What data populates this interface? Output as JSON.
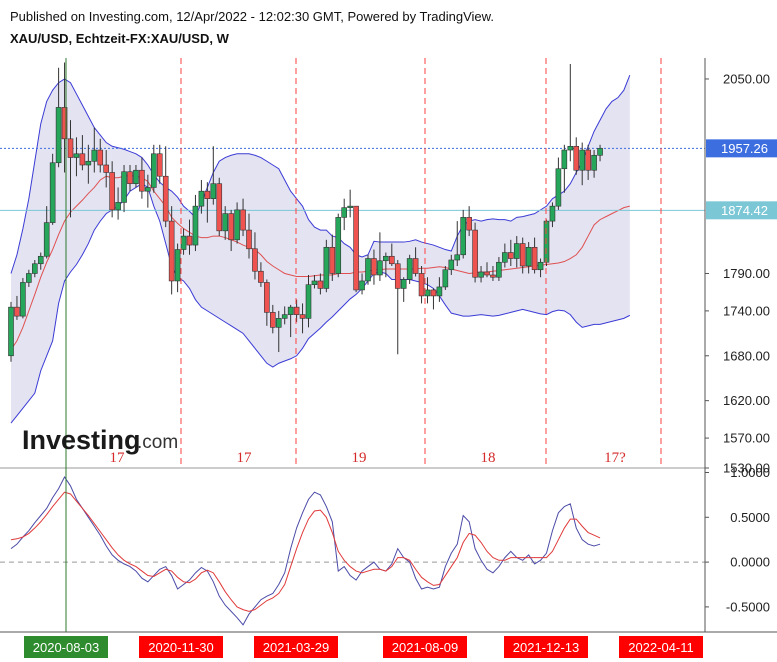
{
  "header": {
    "published": "Published on Investing.com, 12/Apr/2022 - 12:02:30 GMT, Powered by TradingView.",
    "symbol": "XAU/USD, Echtzeit-FX:XAU/USD, W"
  },
  "logo": {
    "main": "Investing",
    "suffix": ".com"
  },
  "chart_data": [
    {
      "type": "candlestick",
      "title": "XAU/USD, Echtzeit-FX:XAU/USD, W",
      "ylim": [
        1530,
        2070
      ],
      "y_ticks": [
        "2050.00",
        "1957.26",
        "1874.42",
        "1790.00",
        "1740.00",
        "1680.00",
        "1620.00",
        "1570.00",
        "1530.00"
      ],
      "price_lines": [
        {
          "label": "1957.26",
          "value": 1957.26,
          "color": "#3d6ee0"
        },
        {
          "label": "1874.42",
          "value": 1874.42,
          "color": "#7cc7d6"
        }
      ],
      "candles": [
        [
          1680,
          1752,
          1672,
          1745
        ],
        [
          1745,
          1760,
          1728,
          1733
        ],
        [
          1733,
          1784,
          1730,
          1778
        ],
        [
          1778,
          1795,
          1772,
          1790
        ],
        [
          1790,
          1808,
          1785,
          1803
        ],
        [
          1803,
          1818,
          1795,
          1813
        ],
        [
          1813,
          1880,
          1810,
          1858
        ],
        [
          1858,
          1950,
          1855,
          1938
        ],
        [
          1938,
          2065,
          1932,
          2012
        ],
        [
          2012,
          2072,
          1925,
          1970
        ],
        [
          1970,
          1995,
          1865,
          1945
        ],
        [
          1945,
          1972,
          1920,
          1950
        ],
        [
          1950,
          1975,
          1928,
          1935
        ],
        [
          1935,
          1962,
          1910,
          1940
        ],
        [
          1940,
          1985,
          1925,
          1955
        ],
        [
          1955,
          1970,
          1925,
          1935
        ],
        [
          1935,
          1955,
          1905,
          1925
        ],
        [
          1925,
          1940,
          1865,
          1875
        ],
        [
          1875,
          1905,
          1862,
          1885
        ],
        [
          1885,
          1935,
          1872,
          1926
        ],
        [
          1926,
          1935,
          1900,
          1910
        ],
        [
          1910,
          1935,
          1905,
          1928
        ],
        [
          1928,
          1945,
          1890,
          1900
        ],
        [
          1900,
          1922,
          1878,
          1905
        ],
        [
          1905,
          1962,
          1898,
          1950
        ],
        [
          1950,
          1962,
          1910,
          1920
        ],
        [
          1920,
          1960,
          1852,
          1860
        ],
        [
          1860,
          1880,
          1762,
          1780
        ],
        [
          1780,
          1830,
          1765,
          1822
        ],
        [
          1822,
          1850,
          1815,
          1840
        ],
        [
          1840,
          1862,
          1815,
          1828
        ],
        [
          1828,
          1895,
          1820,
          1880
        ],
        [
          1880,
          1915,
          1870,
          1900
        ],
        [
          1900,
          1912,
          1858,
          1890
        ],
        [
          1890,
          1960,
          1882,
          1910
        ],
        [
          1910,
          1918,
          1840,
          1847
        ],
        [
          1847,
          1880,
          1835,
          1870
        ],
        [
          1870,
          1875,
          1820,
          1835
        ],
        [
          1835,
          1885,
          1830,
          1875
        ],
        [
          1875,
          1890,
          1840,
          1848
        ],
        [
          1848,
          1870,
          1810,
          1823
        ],
        [
          1823,
          1845,
          1782,
          1793
        ],
        [
          1793,
          1805,
          1772,
          1778
        ],
        [
          1778,
          1782,
          1720,
          1738
        ],
        [
          1738,
          1748,
          1710,
          1718
        ],
        [
          1718,
          1740,
          1685,
          1730
        ],
        [
          1730,
          1746,
          1722,
          1735
        ],
        [
          1735,
          1748,
          1705,
          1745
        ],
        [
          1745,
          1755,
          1725,
          1735
        ],
        [
          1735,
          1750,
          1710,
          1730
        ],
        [
          1730,
          1788,
          1718,
          1775
        ],
        [
          1775,
          1788,
          1770,
          1780
        ],
        [
          1780,
          1790,
          1762,
          1770
        ],
        [
          1770,
          1835,
          1765,
          1825
        ],
        [
          1825,
          1842,
          1780,
          1790
        ],
        [
          1790,
          1870,
          1785,
          1865
        ],
        [
          1865,
          1890,
          1848,
          1878
        ],
        [
          1878,
          1902,
          1865,
          1880
        ],
        [
          1880,
          1880,
          1765,
          1768
        ],
        [
          1768,
          1790,
          1762,
          1780
        ],
        [
          1780,
          1815,
          1775,
          1810
        ],
        [
          1810,
          1822,
          1775,
          1788
        ],
        [
          1788,
          1845,
          1780,
          1807
        ],
        [
          1807,
          1818,
          1785,
          1813
        ],
        [
          1813,
          1830,
          1800,
          1803
        ],
        [
          1803,
          1808,
          1682,
          1770
        ],
        [
          1770,
          1785,
          1752,
          1782
        ],
        [
          1782,
          1815,
          1776,
          1810
        ],
        [
          1810,
          1825,
          1786,
          1790
        ],
        [
          1790,
          1800,
          1750,
          1760
        ],
        [
          1760,
          1785,
          1750,
          1768
        ],
        [
          1768,
          1770,
          1742,
          1760
        ],
        [
          1760,
          1785,
          1752,
          1772
        ],
        [
          1772,
          1800,
          1768,
          1795
        ],
        [
          1795,
          1815,
          1788,
          1808
        ],
        [
          1808,
          1860,
          1800,
          1815
        ],
        [
          1815,
          1875,
          1810,
          1865
        ],
        [
          1865,
          1880,
          1840,
          1848
        ],
        [
          1848,
          1858,
          1778,
          1785
        ],
        [
          1785,
          1800,
          1778,
          1792
        ],
        [
          1792,
          1805,
          1785,
          1788
        ],
        [
          1788,
          1800,
          1780,
          1785
        ],
        [
          1785,
          1812,
          1780,
          1805
        ],
        [
          1805,
          1830,
          1798,
          1818
        ],
        [
          1818,
          1835,
          1800,
          1810
        ],
        [
          1810,
          1840,
          1798,
          1830
        ],
        [
          1830,
          1838,
          1790,
          1800
        ],
        [
          1800,
          1832,
          1790,
          1825
        ],
        [
          1825,
          1838,
          1790,
          1795
        ],
        [
          1795,
          1810,
          1785,
          1805
        ],
        [
          1805,
          1862,
          1800,
          1860
        ],
        [
          1860,
          1885,
          1852,
          1880
        ],
        [
          1880,
          1945,
          1875,
          1930
        ],
        [
          1930,
          1962,
          1898,
          1955
        ],
        [
          1955,
          2070,
          1940,
          1960
        ],
        [
          1960,
          1972,
          1922,
          1928
        ],
        [
          1928,
          1965,
          1908,
          1955
        ],
        [
          1955,
          1962,
          1915,
          1928
        ],
        [
          1928,
          1955,
          1918,
          1948
        ],
        [
          1948,
          1962,
          1940,
          1957.26
        ]
      ],
      "bollinger_upper": [
        1790,
        1815,
        1850,
        1890,
        1940,
        1990,
        2020,
        2035,
        2045,
        2050,
        2045,
        2030,
        2015,
        2000,
        1985,
        1975,
        1965,
        1960,
        1958,
        1956,
        1953,
        1950,
        1945,
        1935,
        1922,
        1912,
        1905,
        1900,
        1892,
        1880,
        1873,
        1865,
        1885,
        1905,
        1925,
        1940,
        1945,
        1948,
        1950,
        1950,
        1950,
        1948,
        1945,
        1940,
        1935,
        1930,
        1915,
        1900,
        1890,
        1880,
        1862,
        1852,
        1848,
        1848,
        1840,
        1838,
        1830,
        1825,
        1815,
        1812,
        1815,
        1833,
        1832,
        1832,
        1832,
        1832,
        1832,
        1833,
        1835,
        1832,
        1830,
        1828,
        1825,
        1822,
        1820,
        1840,
        1855,
        1860,
        1862,
        1860,
        1862,
        1863,
        1862,
        1862,
        1860,
        1865,
        1866,
        1868,
        1870,
        1875,
        1880,
        1890,
        1895,
        1900,
        1910,
        1925,
        1940,
        1960,
        1980,
        1995,
        2010,
        2020,
        2025,
        2035,
        2055
      ],
      "bollinger_lower": [
        1590,
        1600,
        1610,
        1620,
        1630,
        1660,
        1680,
        1700,
        1750,
        1780,
        1792,
        1802,
        1815,
        1830,
        1848,
        1860,
        1870,
        1875,
        1880,
        1888,
        1900,
        1905,
        1910,
        1905,
        1880,
        1860,
        1830,
        1800,
        1785,
        1780,
        1770,
        1755,
        1745,
        1740,
        1735,
        1730,
        1725,
        1720,
        1715,
        1710,
        1700,
        1690,
        1680,
        1670,
        1665,
        1670,
        1673,
        1676,
        1680,
        1690,
        1703,
        1710,
        1717,
        1725,
        1732,
        1740,
        1748,
        1756,
        1762,
        1770,
        1780,
        1790,
        1792,
        1790,
        1782,
        1782,
        1782,
        1782,
        1780,
        1778,
        1775,
        1770,
        1760,
        1748,
        1737,
        1735,
        1733,
        1733,
        1734,
        1735,
        1734,
        1733,
        1734,
        1736,
        1738,
        1740,
        1742,
        1740,
        1738,
        1736,
        1735,
        1739,
        1741,
        1740,
        1735,
        1725,
        1718,
        1720,
        1722,
        1722,
        1724,
        1726,
        1728,
        1730,
        1734
      ],
      "bollinger_basis": [
        1688,
        1700,
        1718,
        1740,
        1762,
        1785,
        1805,
        1822,
        1842,
        1860,
        1872,
        1880,
        1888,
        1897,
        1905,
        1915,
        1920,
        1918,
        1918,
        1920,
        1921,
        1920,
        1918,
        1913,
        1900,
        1890,
        1880,
        1865,
        1857,
        1850,
        1845,
        1840,
        1838,
        1838,
        1840,
        1840,
        1838,
        1835,
        1832,
        1828,
        1825,
        1822,
        1815,
        1806,
        1800,
        1795,
        1790,
        1788,
        1786,
        1786,
        1786,
        1787,
        1788,
        1788,
        1788,
        1790,
        1790,
        1790,
        1792,
        1792,
        1793,
        1795,
        1795,
        1796,
        1796,
        1796,
        1796,
        1796,
        1796,
        1797,
        1797,
        1798,
        1799,
        1798,
        1796,
        1794,
        1792,
        1790,
        1791,
        1792,
        1792,
        1793,
        1794,
        1795,
        1796,
        1797,
        1798,
        1799,
        1800,
        1801,
        1802,
        1803,
        1804,
        1806,
        1810,
        1815,
        1825,
        1840,
        1855,
        1862,
        1866,
        1870,
        1874,
        1878,
        1880
      ]
    },
    {
      "type": "line",
      "ylim": [
        -0.78,
        1.05
      ],
      "y_ticks": [
        "1.0000",
        "0.5000",
        "0.0000",
        "-0.5000"
      ],
      "zero_line": 0,
      "series": [
        {
          "color": "#4b4ba8",
          "values": [
            0.15,
            0.2,
            0.28,
            0.35,
            0.44,
            0.52,
            0.6,
            0.72,
            0.82,
            0.95,
            0.85,
            0.7,
            0.6,
            0.5,
            0.4,
            0.3,
            0.18,
            0.08,
            0.02,
            -0.02,
            -0.05,
            -0.1,
            -0.18,
            -0.22,
            -0.15,
            -0.08,
            -0.05,
            -0.15,
            -0.3,
            -0.25,
            -0.2,
            -0.12,
            -0.06,
            -0.1,
            -0.22,
            -0.38,
            -0.48,
            -0.55,
            -0.62,
            -0.7,
            -0.58,
            -0.5,
            -0.42,
            -0.38,
            -0.35,
            -0.25,
            -0.12,
            0.15,
            0.38,
            0.55,
            0.7,
            0.78,
            0.75,
            0.62,
            0.45,
            -0.1,
            -0.05,
            -0.15,
            -0.2,
            -0.1,
            -0.05,
            0.0,
            -0.08,
            -0.1,
            -0.02,
            0.15,
            0.05,
            0.0,
            -0.18,
            -0.3,
            -0.28,
            -0.3,
            -0.28,
            -0.05,
            0.1,
            0.2,
            0.52,
            0.45,
            0.15,
            0.02,
            -0.08,
            -0.12,
            -0.05,
            0.05,
            0.12,
            0.05,
            0.02,
            0.08,
            -0.02,
            0.02,
            0.1,
            0.35,
            0.55,
            0.62,
            0.65,
            0.38,
            0.25,
            0.2,
            0.18,
            0.2
          ]
        },
        {
          "color": "#e03a3a",
          "values": [
            0.25,
            0.26,
            0.28,
            0.32,
            0.38,
            0.45,
            0.53,
            0.62,
            0.7,
            0.78,
            0.76,
            0.68,
            0.6,
            0.52,
            0.43,
            0.34,
            0.25,
            0.16,
            0.08,
            0.02,
            -0.02,
            -0.05,
            -0.1,
            -0.15,
            -0.16,
            -0.12,
            -0.08,
            -0.1,
            -0.17,
            -0.22,
            -0.23,
            -0.19,
            -0.12,
            -0.09,
            -0.12,
            -0.22,
            -0.33,
            -0.42,
            -0.5,
            -0.53,
            -0.55,
            -0.53,
            -0.48,
            -0.43,
            -0.4,
            -0.35,
            -0.25,
            -0.05,
            0.15,
            0.33,
            0.48,
            0.57,
            0.58,
            0.5,
            0.33,
            0.12,
            0.02,
            -0.05,
            -0.1,
            -0.12,
            -0.1,
            -0.08,
            -0.08,
            -0.1,
            -0.05,
            0.05,
            0.05,
            0.02,
            -0.08,
            -0.17,
            -0.22,
            -0.26,
            -0.25,
            -0.15,
            -0.05,
            0.05,
            0.22,
            0.32,
            0.3,
            0.22,
            0.12,
            0.05,
            0.02,
            0.02,
            0.05,
            0.05,
            0.05,
            0.05,
            0.05,
            0.05,
            0.05,
            0.12,
            0.25,
            0.38,
            0.48,
            0.48,
            0.4,
            0.33,
            0.3,
            0.27
          ]
        }
      ]
    }
  ],
  "cycle_counts": [
    "17",
    "17",
    "19",
    "18",
    "17?"
  ],
  "date_labels": [
    "2020-08-03",
    "2020-11-30",
    "2021-03-29",
    "2021-08-09",
    "2021-12-13",
    "2022-04-11"
  ],
  "colors": {
    "up": "#26a65b",
    "down": "#ef5350",
    "band_fill": "#e3e3f2",
    "band_line": "#3b3bd6",
    "basis": "#e05050",
    "cycle_line": "#ff4040",
    "green_date": "#2e8b2e",
    "red_date": "#ff0000"
  }
}
